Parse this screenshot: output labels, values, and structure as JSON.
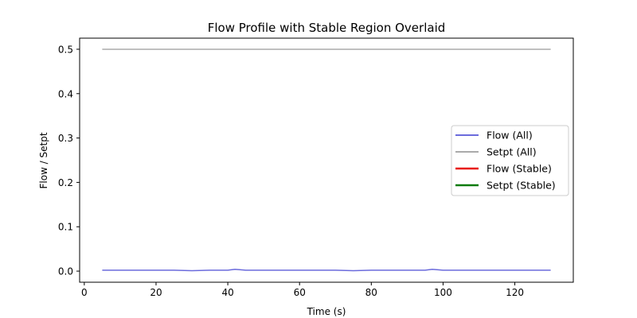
{
  "chart_data": {
    "type": "line",
    "title": "Flow Profile with Stable Region Overlaid",
    "xlabel": "Time (s)",
    "ylabel": "Flow / Setpt",
    "xlim": [
      -1.3,
      136.3
    ],
    "ylim": [
      -0.025,
      0.525
    ],
    "xticks": [
      0,
      20,
      40,
      60,
      80,
      100,
      120
    ],
    "yticks": [
      0.0,
      0.1,
      0.2,
      0.3,
      0.4,
      0.5
    ],
    "xtick_labels": [
      "0",
      "20",
      "40",
      "60",
      "80",
      "100",
      "120"
    ],
    "ytick_labels": [
      "0.0",
      "0.1",
      "0.2",
      "0.3",
      "0.4",
      "0.5"
    ],
    "grid": false,
    "legend_position": "center-right",
    "series": [
      {
        "name": "Flow (All)",
        "color": "#6b6bdc",
        "x": [
          5,
          10,
          15,
          20,
          25,
          30,
          35,
          40,
          42,
          45,
          50,
          55,
          60,
          65,
          70,
          75,
          80,
          85,
          90,
          95,
          97,
          100,
          105,
          110,
          115,
          120,
          125,
          130
        ],
        "y": [
          0.002,
          0.002,
          0.002,
          0.002,
          0.002,
          0.001,
          0.002,
          0.002,
          0.004,
          0.002,
          0.002,
          0.002,
          0.002,
          0.002,
          0.002,
          0.001,
          0.002,
          0.002,
          0.002,
          0.002,
          0.004,
          0.002,
          0.002,
          0.002,
          0.002,
          0.002,
          0.002,
          0.002
        ]
      },
      {
        "name": "Setpt (All)",
        "color": "#aaaaaa",
        "x": [
          5,
          130
        ],
        "y": [
          0.5,
          0.5
        ]
      },
      {
        "name": "Flow (Stable)",
        "color": "#e8120c",
        "x": [],
        "y": []
      },
      {
        "name": "Setpt (Stable)",
        "color": "#0a7a0a",
        "x": [],
        "y": []
      }
    ]
  }
}
